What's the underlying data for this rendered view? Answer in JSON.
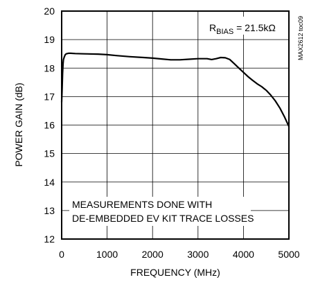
{
  "chart_data": {
    "type": "line",
    "title": "",
    "xlabel": "FREQUENCY (MHz)",
    "ylabel": "POWER GAIN (dB)",
    "xlim": [
      0,
      5000
    ],
    "ylim": [
      12,
      20
    ],
    "xticks": [
      0,
      1000,
      2000,
      3000,
      4000,
      5000
    ],
    "yticks": [
      12,
      13,
      14,
      15,
      16,
      17,
      18,
      19,
      20
    ],
    "grid": true,
    "annotation_rbias_sym": "R",
    "annotation_rbias_sub": "BIAS",
    "annotation_rbias_value": " = 21.5kΩ",
    "annotation_note_line1": "MEASUREMENTS DONE WITH",
    "annotation_note_line2": "DE-EMBEDDED EV KIT TRACE LOSSES",
    "figure_id": "MAX2612 toc09",
    "series": [
      {
        "x": [
          0,
          10,
          20,
          30,
          40,
          60,
          80,
          100,
          150,
          200,
          300,
          500,
          800,
          1000,
          1200,
          1500,
          1800,
          2000,
          2200,
          2400,
          2600,
          2800,
          3000,
          3200,
          3300,
          3400,
          3500,
          3600,
          3700,
          3800,
          3900,
          4000,
          4100,
          4200,
          4300,
          4400,
          4500,
          4600,
          4700,
          4800,
          4900,
          5000
        ],
        "values": [
          16.8,
          17.3,
          17.8,
          18.15,
          18.3,
          18.4,
          18.47,
          18.5,
          18.52,
          18.52,
          18.51,
          18.5,
          18.49,
          18.47,
          18.44,
          18.4,
          18.37,
          18.35,
          18.32,
          18.29,
          18.29,
          18.31,
          18.33,
          18.33,
          18.3,
          18.33,
          18.37,
          18.36,
          18.3,
          18.15,
          18.0,
          17.85,
          17.7,
          17.57,
          17.45,
          17.35,
          17.22,
          17.05,
          16.85,
          16.6,
          16.3,
          15.95
        ]
      }
    ]
  }
}
